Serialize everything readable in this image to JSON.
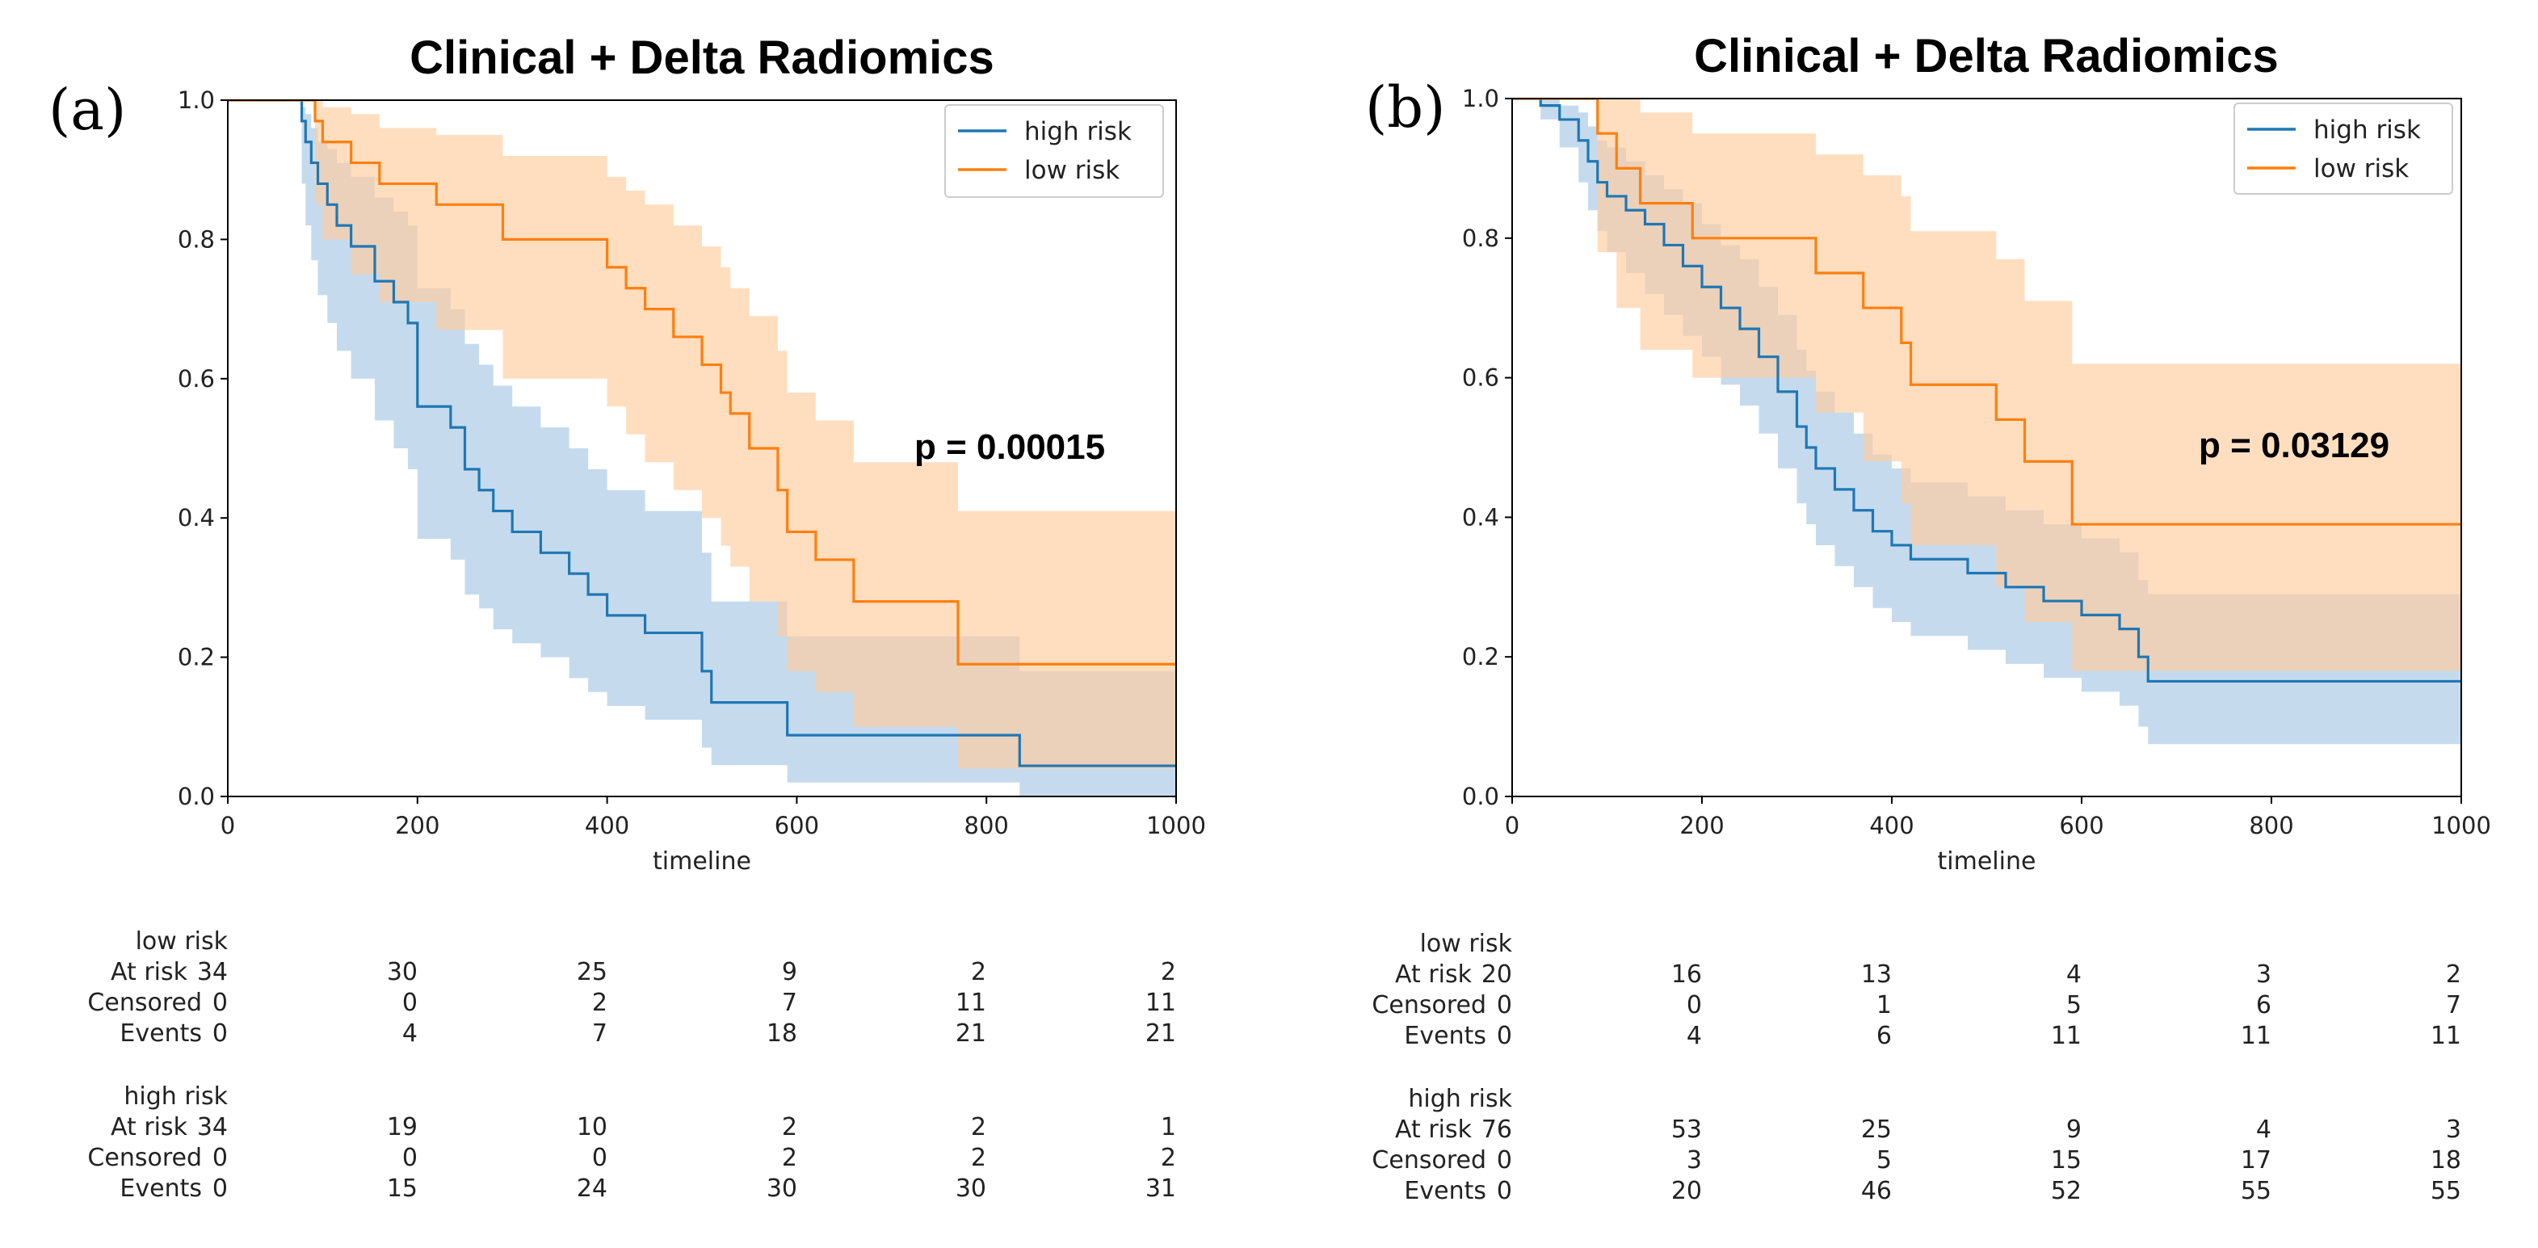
{
  "chart_data": [
    {
      "type": "line",
      "panel_label": "(a)",
      "title": "Clinical + Delta Radiomics",
      "xlabel": "timeline",
      "ylabel": "",
      "xlim": [
        0,
        1000
      ],
      "ylim": [
        0,
        1.0
      ],
      "xticks": [
        "0",
        "200",
        "400",
        "600",
        "800",
        "1000"
      ],
      "yticks": [
        "0.0",
        "0.2",
        "0.4",
        "0.6",
        "0.8",
        "1.0"
      ],
      "legend_position": "top-right",
      "annotation": "p = 0.00015",
      "series": [
        {
          "name": "high risk",
          "color": "#1f77b4",
          "band_color": "#a6c8e3",
          "x": [
            0,
            78,
            82,
            88,
            95,
            105,
            115,
            130,
            155,
            175,
            190,
            200,
            235,
            250,
            265,
            280,
            300,
            330,
            360,
            380,
            400,
            440,
            500,
            510,
            520,
            590,
            600,
            700,
            800,
            835,
            1000
          ],
          "y": [
            1.0,
            0.97,
            0.94,
            0.91,
            0.88,
            0.85,
            0.82,
            0.79,
            0.74,
            0.71,
            0.68,
            0.56,
            0.53,
            0.47,
            0.44,
            0.41,
            0.38,
            0.35,
            0.32,
            0.29,
            0.26,
            0.235,
            0.18,
            0.135,
            0.135,
            0.088,
            0.088,
            0.088,
            0.088,
            0.044,
            0.044
          ],
          "lower": [
            1.0,
            0.88,
            0.82,
            0.77,
            0.72,
            0.68,
            0.64,
            0.6,
            0.54,
            0.5,
            0.47,
            0.37,
            0.34,
            0.29,
            0.27,
            0.24,
            0.22,
            0.2,
            0.17,
            0.15,
            0.13,
            0.11,
            0.07,
            0.045,
            0.045,
            0.02,
            0.02,
            0.02,
            0.02,
            0.0,
            0.0
          ],
          "upper": [
            1.0,
            0.99,
            0.98,
            0.96,
            0.94,
            0.93,
            0.91,
            0.89,
            0.86,
            0.84,
            0.82,
            0.73,
            0.7,
            0.65,
            0.62,
            0.59,
            0.56,
            0.53,
            0.5,
            0.47,
            0.44,
            0.41,
            0.35,
            0.28,
            0.28,
            0.23,
            0.23,
            0.23,
            0.23,
            0.18,
            0.18
          ],
          "risk_table": {
            "label": "high risk",
            "at_risk": [
              34,
              19,
              10,
              2,
              2,
              1
            ],
            "censored": [
              0,
              0,
              0,
              2,
              2,
              2
            ],
            "events": [
              0,
              15,
              24,
              30,
              30,
              31
            ]
          }
        },
        {
          "name": "low risk",
          "color": "#ff7f0e",
          "band_color": "#ffcc9e",
          "x": [
            0,
            92,
            100,
            130,
            160,
            220,
            290,
            400,
            420,
            440,
            470,
            500,
            520,
            530,
            550,
            580,
            590,
            620,
            660,
            770,
            780,
            1000
          ],
          "y": [
            1.0,
            0.97,
            0.94,
            0.91,
            0.88,
            0.85,
            0.8,
            0.76,
            0.73,
            0.7,
            0.66,
            0.62,
            0.58,
            0.55,
            0.5,
            0.44,
            0.38,
            0.34,
            0.28,
            0.19,
            0.19,
            0.19
          ],
          "lower": [
            1.0,
            0.85,
            0.8,
            0.75,
            0.71,
            0.67,
            0.6,
            0.56,
            0.52,
            0.48,
            0.44,
            0.4,
            0.36,
            0.33,
            0.28,
            0.23,
            0.18,
            0.15,
            0.1,
            0.04,
            0.04,
            0.04
          ],
          "upper": [
            1.0,
            1.0,
            0.99,
            0.98,
            0.96,
            0.95,
            0.92,
            0.89,
            0.87,
            0.85,
            0.82,
            0.79,
            0.76,
            0.73,
            0.69,
            0.64,
            0.58,
            0.54,
            0.48,
            0.41,
            0.41,
            0.41
          ],
          "risk_table": {
            "label": "low risk",
            "at_risk": [
              34,
              30,
              25,
              9,
              2,
              2
            ],
            "censored": [
              0,
              0,
              2,
              7,
              11,
              11
            ],
            "events": [
              0,
              4,
              7,
              18,
              21,
              21
            ]
          }
        }
      ],
      "risk_table_columns": [
        0,
        200,
        400,
        600,
        800,
        1000
      ],
      "row_labels": [
        "At risk",
        "Censored",
        "Events"
      ]
    },
    {
      "type": "line",
      "panel_label": "(b)",
      "title": "Clinical + Delta Radiomics",
      "xlabel": "timeline",
      "ylabel": "",
      "xlim": [
        0,
        1000
      ],
      "ylim": [
        0,
        1.0
      ],
      "xticks": [
        "0",
        "200",
        "400",
        "600",
        "800",
        "1000"
      ],
      "yticks": [
        "0.0",
        "0.2",
        "0.4",
        "0.6",
        "0.8",
        "1.0"
      ],
      "legend_position": "top-right",
      "annotation": "p = 0.03129",
      "series": [
        {
          "name": "high risk",
          "color": "#1f77b4",
          "band_color": "#a6c8e3",
          "x": [
            0,
            30,
            50,
            70,
            80,
            90,
            100,
            120,
            140,
            160,
            180,
            200,
            220,
            240,
            260,
            280,
            300,
            310,
            320,
            340,
            360,
            380,
            400,
            420,
            480,
            520,
            560,
            600,
            640,
            660,
            670,
            1000
          ],
          "y": [
            1.0,
            0.99,
            0.97,
            0.94,
            0.91,
            0.88,
            0.86,
            0.84,
            0.82,
            0.79,
            0.76,
            0.73,
            0.7,
            0.67,
            0.63,
            0.58,
            0.53,
            0.5,
            0.47,
            0.44,
            0.41,
            0.38,
            0.36,
            0.34,
            0.32,
            0.3,
            0.28,
            0.26,
            0.24,
            0.2,
            0.165,
            0.165
          ],
          "lower": [
            1.0,
            0.97,
            0.93,
            0.88,
            0.84,
            0.81,
            0.78,
            0.75,
            0.72,
            0.69,
            0.66,
            0.63,
            0.59,
            0.56,
            0.52,
            0.47,
            0.42,
            0.39,
            0.36,
            0.33,
            0.3,
            0.27,
            0.25,
            0.23,
            0.21,
            0.19,
            0.17,
            0.15,
            0.13,
            0.1,
            0.075,
            0.075
          ],
          "upper": [
            1.0,
            1.0,
            0.99,
            0.98,
            0.96,
            0.94,
            0.93,
            0.91,
            0.89,
            0.87,
            0.85,
            0.82,
            0.79,
            0.77,
            0.73,
            0.69,
            0.64,
            0.61,
            0.58,
            0.55,
            0.52,
            0.49,
            0.47,
            0.45,
            0.43,
            0.41,
            0.39,
            0.37,
            0.35,
            0.31,
            0.29,
            0.29
          ],
          "risk_table": {
            "label": "high risk",
            "at_risk": [
              76,
              53,
              25,
              9,
              4,
              3
            ],
            "censored": [
              0,
              3,
              5,
              15,
              17,
              18
            ],
            "events": [
              0,
              20,
              46,
              52,
              55,
              55
            ]
          }
        },
        {
          "name": "low risk",
          "color": "#ff7f0e",
          "band_color": "#ffcc9e",
          "x": [
            0,
            90,
            110,
            135,
            190,
            320,
            370,
            410,
            420,
            510,
            540,
            590,
            1000
          ],
          "y": [
            1.0,
            0.95,
            0.9,
            0.85,
            0.8,
            0.75,
            0.7,
            0.65,
            0.59,
            0.54,
            0.48,
            0.39,
            0.39
          ],
          "lower": [
            1.0,
            0.78,
            0.7,
            0.64,
            0.6,
            0.55,
            0.48,
            0.42,
            0.36,
            0.3,
            0.25,
            0.18,
            0.18
          ],
          "upper": [
            1.0,
            1.0,
            1.0,
            0.98,
            0.95,
            0.92,
            0.89,
            0.86,
            0.81,
            0.77,
            0.71,
            0.62,
            0.62
          ],
          "risk_table": {
            "label": "low risk",
            "at_risk": [
              20,
              16,
              13,
              4,
              3,
              2
            ],
            "censored": [
              0,
              0,
              1,
              5,
              6,
              7
            ],
            "events": [
              0,
              4,
              6,
              11,
              11,
              11
            ]
          }
        }
      ],
      "risk_table_columns": [
        0,
        200,
        400,
        600,
        800,
        1000
      ],
      "row_labels": [
        "At risk",
        "Censored",
        "Events"
      ]
    }
  ]
}
